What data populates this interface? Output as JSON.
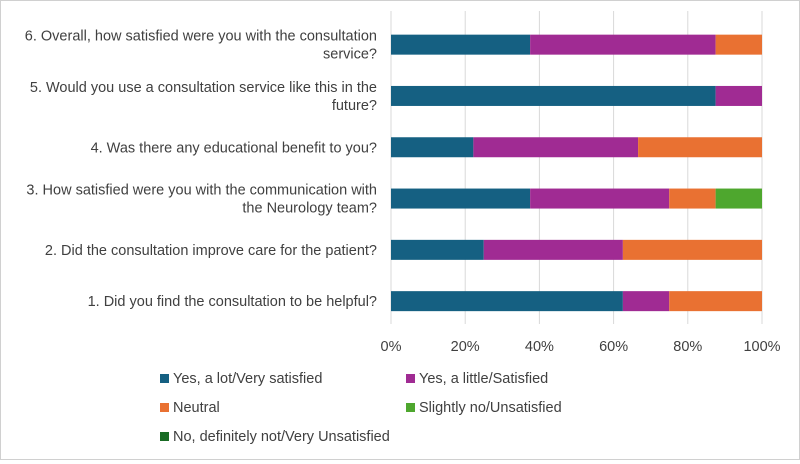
{
  "chart_data": {
    "type": "bar",
    "orientation": "horizontal",
    "stacked": true,
    "stack_mode": "percent",
    "title": "",
    "xlabel": "",
    "ylabel": "",
    "xlim": [
      0,
      100
    ],
    "x_ticks": [
      0,
      20,
      40,
      60,
      80,
      100
    ],
    "x_tick_suffix": "%",
    "grid": true,
    "legend_position": "bottom",
    "categories": [
      [
        "6. Overall, how satisfied were you with the consultation",
        "service?"
      ],
      [
        "5. Would you use a consultation service like this in the",
        "future?"
      ],
      [
        "4. Was there any educational benefit to you?"
      ],
      [
        "3. How satisfied were you with the communication with",
        "the Neurology team?"
      ],
      [
        "2. Did the consultation improve care for the patient?"
      ],
      [
        "1. Did you find the consultation to be helpful?"
      ]
    ],
    "series": [
      {
        "name": "Yes, a lot/Very satisfied",
        "color": "#156082",
        "values": [
          37.5,
          87.5,
          22.2,
          37.5,
          25.0,
          62.5
        ]
      },
      {
        "name": "Yes, a little/Satisfied",
        "color": "#A02B93",
        "values": [
          50.0,
          12.5,
          44.4,
          37.5,
          37.5,
          12.5
        ]
      },
      {
        "name": "Neutral",
        "color": "#E97132",
        "values": [
          12.5,
          0,
          33.4,
          12.5,
          37.5,
          25.0
        ]
      },
      {
        "name": "Slightly no/Unsatisfied",
        "color": "#4EA72E",
        "values": [
          0,
          0,
          0,
          12.5,
          0,
          0
        ]
      },
      {
        "name": "No, definitely not/Very Unsatisfied",
        "color": "#196B24",
        "values": [
          0,
          0,
          0,
          0,
          0,
          0
        ]
      }
    ]
  }
}
